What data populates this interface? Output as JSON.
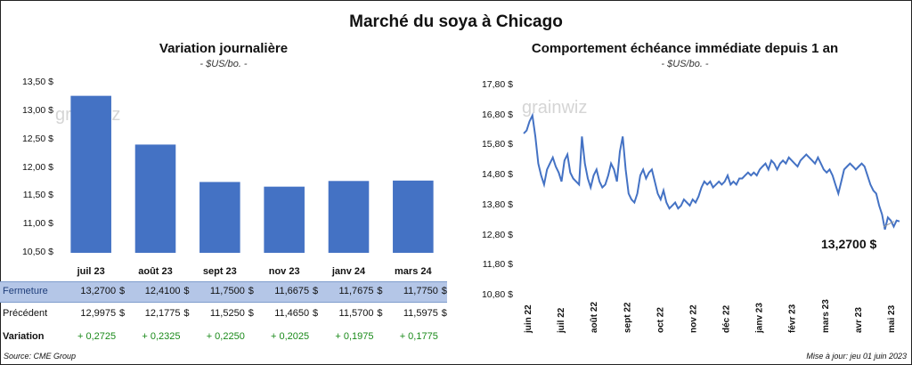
{
  "main_title": "Marché du soya à Chicago",
  "left": {
    "title": "Variation  journalière",
    "unit": "- $US/bo. -",
    "watermark": "grainwiz"
  },
  "right": {
    "title": "Comportement  échéance immédiate depuis 1 an",
    "unit": "- $US/bo. -",
    "watermark": "grainwiz",
    "last_value": "13,2700 $"
  },
  "table": {
    "rows": [
      {
        "label": "Fermeture",
        "values": [
          "13,2700",
          "12,4100",
          "11,7500",
          "11,6675",
          "11,7675",
          "11,7750"
        ],
        "dollar": "$"
      },
      {
        "label": "Précédent",
        "values": [
          "12,9975",
          "12,1775",
          "11,5250",
          "11,4650",
          "11,5700",
          "11,5975"
        ],
        "dollar": "$"
      },
      {
        "label": "Variation",
        "values": [
          "+ 0,2725",
          "+ 0,2325",
          "+ 0,2250",
          "+ 0,2025",
          "+ 0,1975",
          "+ 0,1775"
        ],
        "dollar": ""
      }
    ]
  },
  "footer": {
    "source": "Source: CME Group",
    "update": "Mise à jour: jeu 01 juin 2023"
  },
  "chart_data": [
    {
      "type": "bar",
      "title": "Variation  journalière",
      "ylabel": "- $US/bo. -",
      "categories": [
        "juil 23",
        "août 23",
        "sept 23",
        "nov 23",
        "janv 24",
        "mars 24"
      ],
      "values": [
        13.27,
        12.41,
        11.75,
        11.6675,
        11.7675,
        11.775
      ],
      "ylim": [
        10.5,
        13.5
      ],
      "yticks": [
        "10,50 $",
        "11,00 $",
        "11,50 $",
        "12,00 $",
        "12,50 $",
        "13,00 $",
        "13,50 $"
      ],
      "ytick_values": [
        10.5,
        11.0,
        11.5,
        12.0,
        12.5,
        13.0,
        13.5
      ],
      "color": "#4472c4",
      "grid": false
    },
    {
      "type": "line",
      "title": "Comportement  échéance immédiate depuis 1 an",
      "ylabel": "- $US/bo. -",
      "ylim": [
        10.8,
        17.8
      ],
      "yticks": [
        "10,80 $",
        "11,80 $",
        "12,80 $",
        "13,80 $",
        "14,80 $",
        "15,80 $",
        "16,80 $",
        "17,80 $"
      ],
      "ytick_values": [
        10.8,
        11.8,
        12.8,
        13.8,
        14.8,
        15.8,
        16.8,
        17.8
      ],
      "xticks": [
        "juin 22",
        "juil 22",
        "août 22",
        "sept 22",
        "oct 22",
        "nov 22",
        "déc 22",
        "janv 23",
        "févr 23",
        "mars 23",
        "avr 23",
        "mai 23"
      ],
      "color": "#4472c4",
      "grid": false,
      "values": [
        16.2,
        16.3,
        16.6,
        16.8,
        16.1,
        15.2,
        14.8,
        14.5,
        15.0,
        15.2,
        15.4,
        15.1,
        14.9,
        14.6,
        15.3,
        15.5,
        14.9,
        14.7,
        14.6,
        14.5,
        16.1,
        15.2,
        14.7,
        14.4,
        14.8,
        15.0,
        14.6,
        14.4,
        14.5,
        14.8,
        15.2,
        15.0,
        14.6,
        15.6,
        16.1,
        15.0,
        14.2,
        14.0,
        13.9,
        14.2,
        14.8,
        15.0,
        14.7,
        14.9,
        15.0,
        14.6,
        14.2,
        14.0,
        14.3,
        13.9,
        13.7,
        13.8,
        13.9,
        13.7,
        13.8,
        14.0,
        13.9,
        13.8,
        14.0,
        13.9,
        14.1,
        14.4,
        14.6,
        14.5,
        14.6,
        14.4,
        14.5,
        14.6,
        14.5,
        14.6,
        14.8,
        14.5,
        14.6,
        14.5,
        14.7,
        14.7,
        14.8,
        14.9,
        14.8,
        14.9,
        14.8,
        15.0,
        15.1,
        15.2,
        15.0,
        15.3,
        15.2,
        15.0,
        15.2,
        15.3,
        15.2,
        15.4,
        15.3,
        15.2,
        15.1,
        15.3,
        15.4,
        15.5,
        15.4,
        15.3,
        15.2,
        15.4,
        15.2,
        15.0,
        14.9,
        15.0,
        14.8,
        14.5,
        14.2,
        14.6,
        15.0,
        15.1,
        15.2,
        15.1,
        15.0,
        15.1,
        15.2,
        15.1,
        14.8,
        14.5,
        14.3,
        14.2,
        13.8,
        13.5,
        13.0,
        13.4,
        13.3,
        13.1,
        13.3,
        13.27
      ]
    }
  ]
}
